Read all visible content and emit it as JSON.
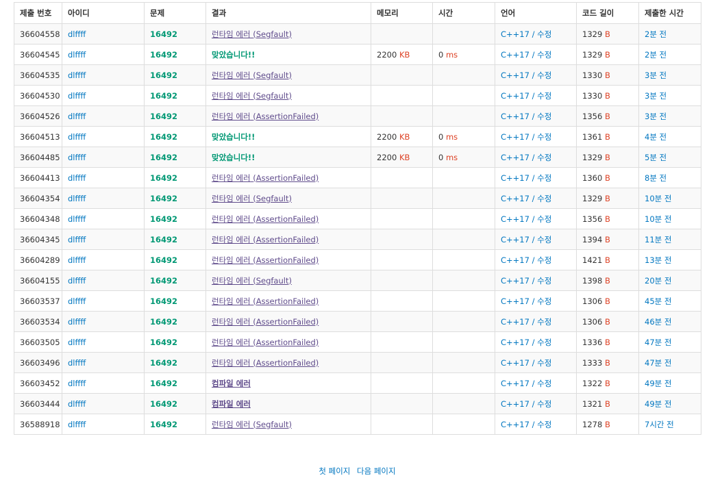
{
  "columns": [
    "제출 번호",
    "아이디",
    "문제",
    "결과",
    "메모리",
    "시간",
    "언어",
    "코드 길이",
    "제출한 시간"
  ],
  "units": {
    "memory": "KB",
    "time": "ms",
    "length": "B"
  },
  "colors": {
    "accepted": "#009874",
    "runtime_error": "#5f4b8b",
    "link": "#0076c0",
    "unit": "#dd4124"
  },
  "rows": [
    {
      "id": "36604558",
      "user": "dlffff",
      "problem": "16492",
      "result": "런타임 에러",
      "detail": "(Segfault)",
      "result_type": "rte",
      "memory": "",
      "time": "",
      "lang": "C++17",
      "edit": "수정",
      "length": "1329",
      "submitted": "2분 전"
    },
    {
      "id": "36604545",
      "user": "dlffff",
      "problem": "16492",
      "result": "맞았습니다!!",
      "detail": "",
      "result_type": "ac",
      "memory": "2200",
      "time": "0",
      "lang": "C++17",
      "edit": "수정",
      "length": "1329",
      "submitted": "2분 전"
    },
    {
      "id": "36604535",
      "user": "dlffff",
      "problem": "16492",
      "result": "런타임 에러",
      "detail": "(Segfault)",
      "result_type": "rte",
      "memory": "",
      "time": "",
      "lang": "C++17",
      "edit": "수정",
      "length": "1330",
      "submitted": "3분 전"
    },
    {
      "id": "36604530",
      "user": "dlffff",
      "problem": "16492",
      "result": "런타임 에러",
      "detail": "(Segfault)",
      "result_type": "rte",
      "memory": "",
      "time": "",
      "lang": "C++17",
      "edit": "수정",
      "length": "1330",
      "submitted": "3분 전"
    },
    {
      "id": "36604526",
      "user": "dlffff",
      "problem": "16492",
      "result": "런타임 에러",
      "detail": "(AssertionFailed)",
      "result_type": "rte",
      "memory": "",
      "time": "",
      "lang": "C++17",
      "edit": "수정",
      "length": "1356",
      "submitted": "3분 전"
    },
    {
      "id": "36604513",
      "user": "dlffff",
      "problem": "16492",
      "result": "맞았습니다!!",
      "detail": "",
      "result_type": "ac",
      "memory": "2200",
      "time": "0",
      "lang": "C++17",
      "edit": "수정",
      "length": "1361",
      "submitted": "4분 전"
    },
    {
      "id": "36604485",
      "user": "dlffff",
      "problem": "16492",
      "result": "맞았습니다!!",
      "detail": "",
      "result_type": "ac",
      "memory": "2200",
      "time": "0",
      "lang": "C++17",
      "edit": "수정",
      "length": "1329",
      "submitted": "5분 전"
    },
    {
      "id": "36604413",
      "user": "dlffff",
      "problem": "16492",
      "result": "런타임 에러",
      "detail": "(AssertionFailed)",
      "result_type": "rte",
      "memory": "",
      "time": "",
      "lang": "C++17",
      "edit": "수정",
      "length": "1360",
      "submitted": "8분 전"
    },
    {
      "id": "36604354",
      "user": "dlffff",
      "problem": "16492",
      "result": "런타임 에러",
      "detail": "(Segfault)",
      "result_type": "rte",
      "memory": "",
      "time": "",
      "lang": "C++17",
      "edit": "수정",
      "length": "1329",
      "submitted": "10분 전"
    },
    {
      "id": "36604348",
      "user": "dlffff",
      "problem": "16492",
      "result": "런타임 에러",
      "detail": "(AssertionFailed)",
      "result_type": "rte",
      "memory": "",
      "time": "",
      "lang": "C++17",
      "edit": "수정",
      "length": "1356",
      "submitted": "10분 전"
    },
    {
      "id": "36604345",
      "user": "dlffff",
      "problem": "16492",
      "result": "런타임 에러",
      "detail": "(AssertionFailed)",
      "result_type": "rte",
      "memory": "",
      "time": "",
      "lang": "C++17",
      "edit": "수정",
      "length": "1394",
      "submitted": "11분 전"
    },
    {
      "id": "36604289",
      "user": "dlffff",
      "problem": "16492",
      "result": "런타임 에러",
      "detail": "(AssertionFailed)",
      "result_type": "rte",
      "memory": "",
      "time": "",
      "lang": "C++17",
      "edit": "수정",
      "length": "1421",
      "submitted": "13분 전"
    },
    {
      "id": "36604155",
      "user": "dlffff",
      "problem": "16492",
      "result": "런타임 에러",
      "detail": "(Segfault)",
      "result_type": "rte",
      "memory": "",
      "time": "",
      "lang": "C++17",
      "edit": "수정",
      "length": "1398",
      "submitted": "20분 전"
    },
    {
      "id": "36603537",
      "user": "dlffff",
      "problem": "16492",
      "result": "런타임 에러",
      "detail": "(AssertionFailed)",
      "result_type": "rte",
      "memory": "",
      "time": "",
      "lang": "C++17",
      "edit": "수정",
      "length": "1306",
      "submitted": "45분 전"
    },
    {
      "id": "36603534",
      "user": "dlffff",
      "problem": "16492",
      "result": "런타임 에러",
      "detail": "(AssertionFailed)",
      "result_type": "rte",
      "memory": "",
      "time": "",
      "lang": "C++17",
      "edit": "수정",
      "length": "1306",
      "submitted": "46분 전"
    },
    {
      "id": "36603505",
      "user": "dlffff",
      "problem": "16492",
      "result": "런타임 에러",
      "detail": "(AssertionFailed)",
      "result_type": "rte",
      "memory": "",
      "time": "",
      "lang": "C++17",
      "edit": "수정",
      "length": "1336",
      "submitted": "47분 전"
    },
    {
      "id": "36603496",
      "user": "dlffff",
      "problem": "16492",
      "result": "런타임 에러",
      "detail": "(AssertionFailed)",
      "result_type": "rte",
      "memory": "",
      "time": "",
      "lang": "C++17",
      "edit": "수정",
      "length": "1333",
      "submitted": "47분 전"
    },
    {
      "id": "36603452",
      "user": "dlffff",
      "problem": "16492",
      "result": "컴파일 에러",
      "detail": "",
      "result_type": "ce",
      "memory": "",
      "time": "",
      "lang": "C++17",
      "edit": "수정",
      "length": "1322",
      "submitted": "49분 전"
    },
    {
      "id": "36603444",
      "user": "dlffff",
      "problem": "16492",
      "result": "컴파일 에러",
      "detail": "",
      "result_type": "ce",
      "memory": "",
      "time": "",
      "lang": "C++17",
      "edit": "수정",
      "length": "1321",
      "submitted": "49분 전"
    },
    {
      "id": "36588918",
      "user": "dlffff",
      "problem": "16492",
      "result": "런타임 에러",
      "detail": "(Segfault)",
      "result_type": "rte",
      "memory": "",
      "time": "",
      "lang": "C++17",
      "edit": "수정",
      "length": "1278",
      "submitted": "7시간 전"
    }
  ],
  "pagination": {
    "first": "첫 페이지",
    "next": "다음 페이지"
  }
}
